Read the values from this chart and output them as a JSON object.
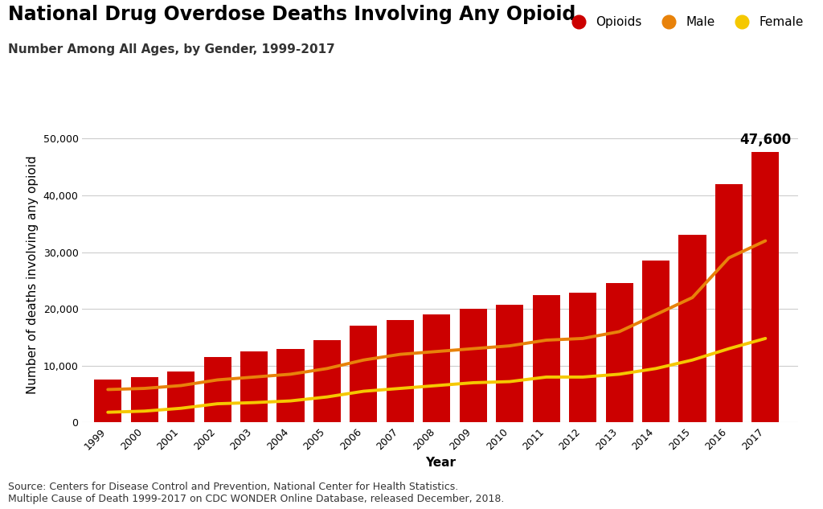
{
  "title": "National Drug Overdose Deaths Involving Any Opioid",
  "subtitle": "Number Among All Ages, by Gender, 1999-2017",
  "xlabel": "Year",
  "ylabel": "Number of deaths involving any opioid",
  "source_text": "Source: Centers for Disease Control and Prevention, National Center for Health Statistics.\nMultiple Cause of Death 1999-2017 on CDC WONDER Online Database, released December, 2018.",
  "years": [
    1999,
    2000,
    2001,
    2002,
    2003,
    2004,
    2005,
    2006,
    2007,
    2008,
    2009,
    2010,
    2011,
    2012,
    2013,
    2014,
    2015,
    2016,
    2017
  ],
  "opioid_deaths": [
    7500,
    8000,
    9000,
    11500,
    12500,
    13000,
    14500,
    17000,
    18000,
    19000,
    20000,
    20700,
    22500,
    22800,
    24500,
    28500,
    33000,
    42000,
    47600
  ],
  "male_deaths": [
    5800,
    6000,
    6500,
    7500,
    8000,
    8500,
    9500,
    11000,
    12000,
    12500,
    13000,
    13500,
    14500,
    14800,
    16000,
    19000,
    22000,
    29000,
    32000
  ],
  "female_deaths": [
    1800,
    2000,
    2500,
    3300,
    3500,
    3800,
    4500,
    5500,
    6000,
    6500,
    7000,
    7200,
    8000,
    8000,
    8500,
    9500,
    11000,
    13000,
    14800
  ],
  "bar_color": "#CC0000",
  "male_line_color": "#E8820A",
  "female_line_color": "#F5C800",
  "annotation_value": "47,600",
  "ylim": [
    0,
    52000
  ],
  "yticks": [
    0,
    10000,
    20000,
    30000,
    40000,
    50000
  ],
  "ytick_labels": [
    "0",
    "10,000",
    "20,000",
    "30,000",
    "40,000",
    "50,000"
  ],
  "background_color": "#ffffff",
  "plot_background_color": "#ffffff",
  "grid_color": "#cccccc",
  "title_fontsize": 17,
  "subtitle_fontsize": 11,
  "axis_label_fontsize": 11,
  "tick_fontsize": 9,
  "legend_fontsize": 11,
  "annotation_fontsize": 12,
  "source_fontsize": 9
}
